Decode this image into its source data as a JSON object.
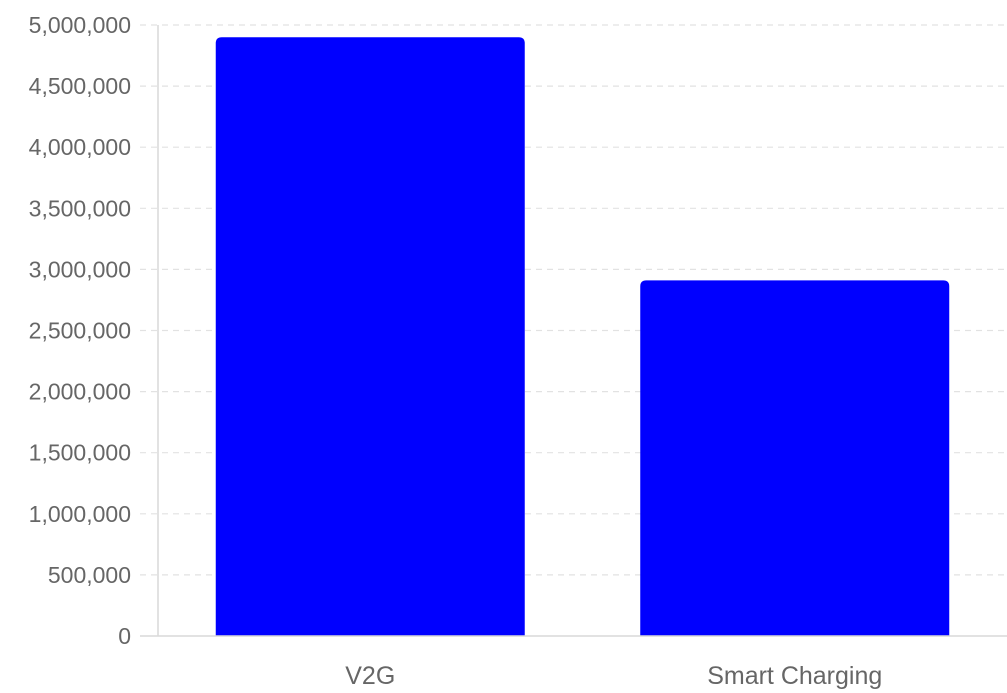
{
  "chart_data": {
    "type": "bar",
    "categories": [
      "V2G",
      "Smart Charging"
    ],
    "values": [
      4900000,
      2910000
    ],
    "ylim": [
      0,
      5000000
    ],
    "yticks": [
      0,
      500000,
      1000000,
      1500000,
      2000000,
      2500000,
      3000000,
      3500000,
      4000000,
      4500000,
      5000000
    ],
    "ytick_labels": [
      "0",
      "500,000",
      "1,000,000",
      "1,500,000",
      "2,000,000",
      "2,500,000",
      "3,000,000",
      "3,500,000",
      "4,000,000",
      "4,500,000",
      "5,000,000"
    ],
    "title": "",
    "xlabel": "",
    "ylabel": "",
    "grid": true,
    "legend": "none",
    "bar_color": "#0000ff"
  }
}
